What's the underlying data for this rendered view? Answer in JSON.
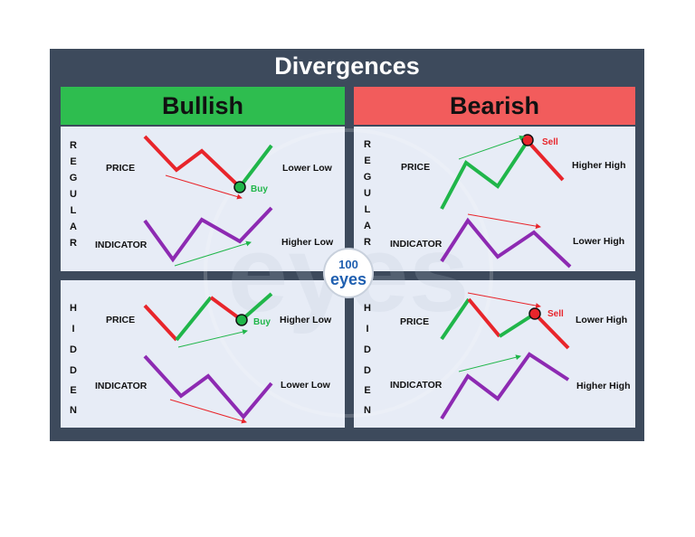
{
  "title": "Divergences",
  "headers": {
    "bullish": "Bullish",
    "bearish": "Bearish"
  },
  "row_words": {
    "regular": "REGULAR",
    "hidden": "HIDDEN"
  },
  "labels": {
    "price": "PRICE",
    "indicator": "INDICATOR"
  },
  "regular_bullish": {
    "price_note": "Lower Low",
    "indicator_note": "Higher Low",
    "signal": "Buy"
  },
  "regular_bearish": {
    "price_note": "Higher High",
    "indicator_note": "Lower High",
    "signal": "Sell"
  },
  "hidden_bullish": {
    "price_note": "Higher Low",
    "indicator_note": "Lower Low",
    "signal": "Buy"
  },
  "hidden_bearish": {
    "price_note": "Lower High",
    "indicator_note": "Higher High",
    "signal": "Sell"
  },
  "logo": {
    "number": "100",
    "word": "eyes"
  },
  "colors": {
    "background": "#3d4a5c",
    "bullish": "#2ebd4f",
    "bearish": "#f25c5c",
    "panel": "#e7ecf6",
    "price_up": "#20b64a",
    "price_down": "#e8252b",
    "indicator": "#8d2ab2",
    "trend_up": "#20b64a",
    "trend_down": "#e8252b",
    "logo": "#1f5fb0"
  }
}
